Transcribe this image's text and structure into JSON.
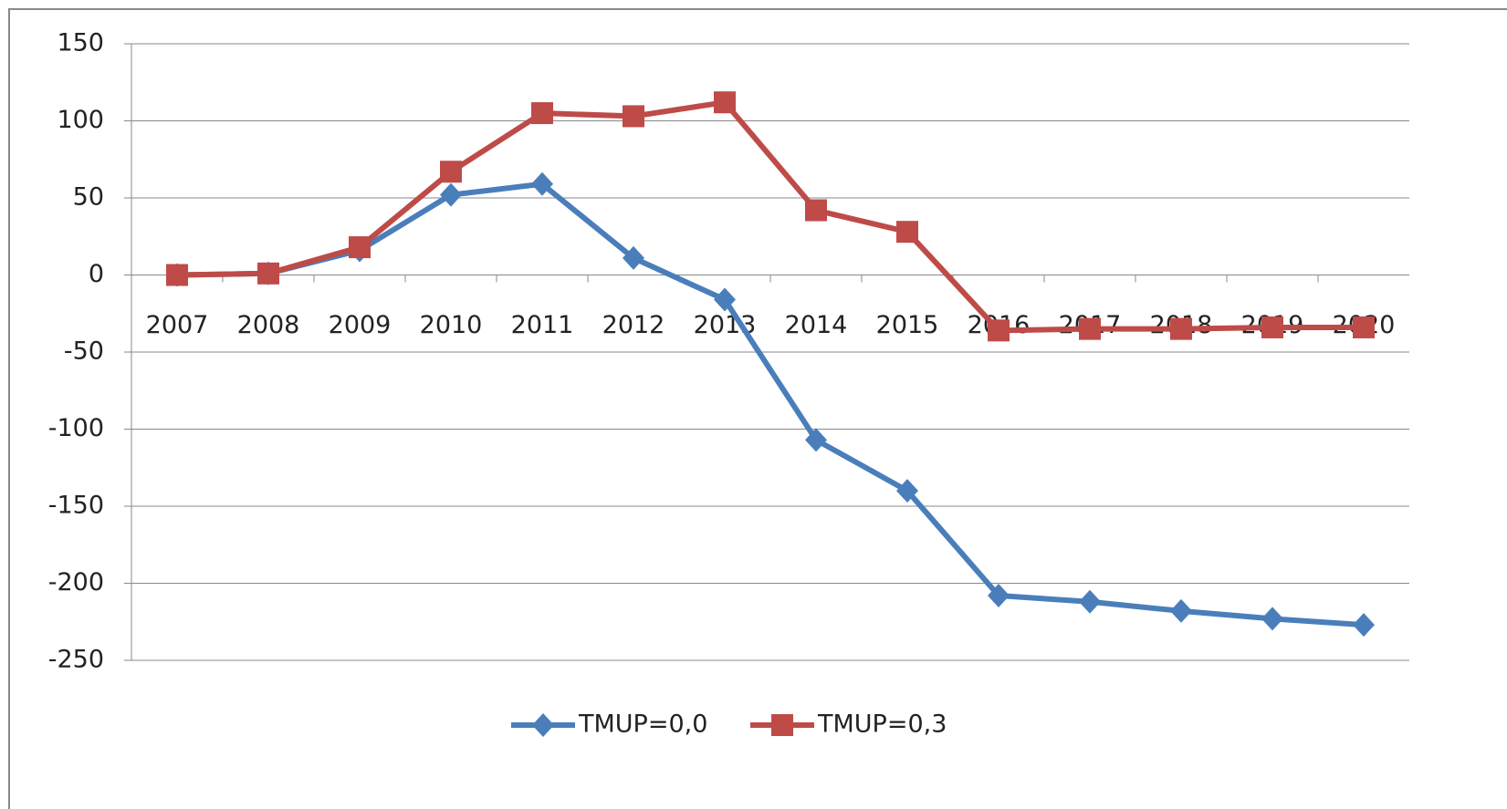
{
  "chart_data": {
    "type": "line",
    "categories": [
      "2007",
      "2008",
      "2009",
      "2010",
      "2011",
      "2012",
      "2013",
      "2014",
      "2015",
      "2016",
      "2017",
      "2018",
      "2019",
      "2020"
    ],
    "series": [
      {
        "name": "TMUP=0,0",
        "color": "#4a7ebb",
        "marker": "diamond",
        "values": [
          0,
          1,
          16,
          52,
          59,
          11,
          -16,
          -107,
          -140,
          -208,
          -212,
          -218,
          -223,
          -227
        ]
      },
      {
        "name": "TMUP=0,3",
        "color": "#be4b48",
        "marker": "square",
        "values": [
          0,
          1,
          18,
          67,
          105,
          103,
          112,
          42,
          28,
          -36,
          -35,
          -35,
          -34,
          -34
        ]
      }
    ],
    "ylim": [
      -250,
      150
    ],
    "yticks": [
      -250,
      -200,
      -150,
      -100,
      -50,
      0,
      50,
      100,
      150
    ],
    "grid": true,
    "legend": "bottom"
  }
}
